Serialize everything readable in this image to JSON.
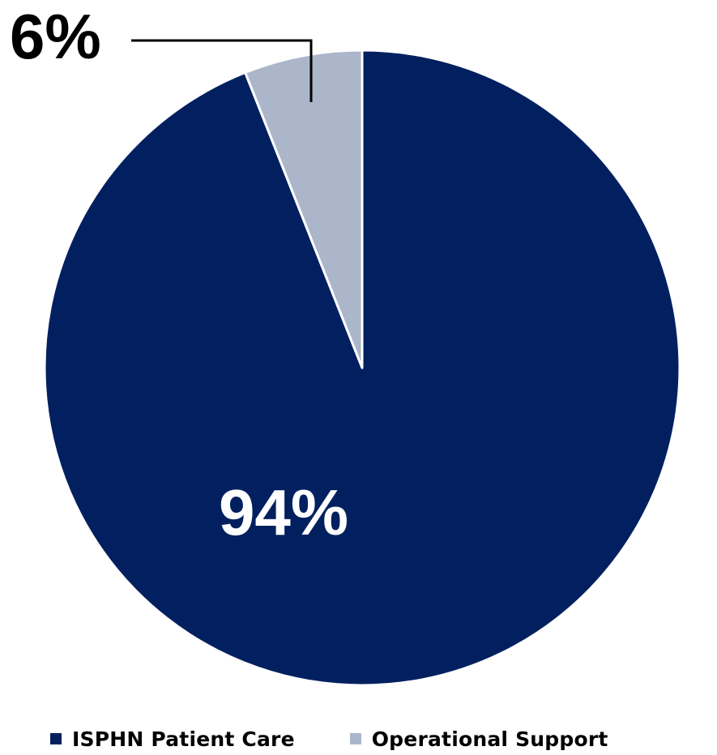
{
  "chart_data": {
    "type": "pie",
    "title": "",
    "series": [
      {
        "name": "ISPHN Patient Care",
        "value": 94,
        "label": "94%",
        "color": "#02205F"
      },
      {
        "name": "Operational Support",
        "value": 6,
        "label": "6%",
        "color": "#ABB6CA"
      }
    ],
    "legend_placement": "bottom",
    "label_color_inside": "#FFFFFF",
    "label_color_outside": "#000000",
    "leader_line_color": "#000000"
  }
}
